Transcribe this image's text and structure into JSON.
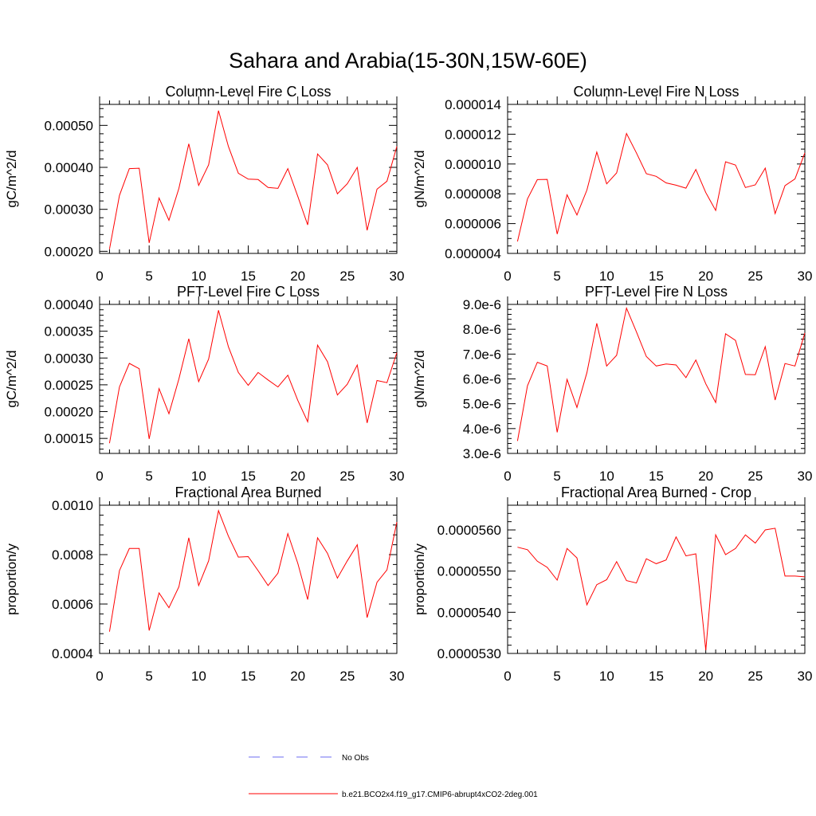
{
  "figure_title": "Sahara and Arabia(15-30N,15W-60E)",
  "colors": {
    "model": "#ff0000",
    "obs": "#6d6df0",
    "axes": "#000000"
  },
  "legend": [
    {
      "label": "No Obs",
      "style": "dashed",
      "color": "#6d6df0"
    },
    {
      "label": "b.e21.BCO2x4.f19_g17.CMIP6-abrupt4xCO2-2deg.001",
      "style": "solid",
      "color": "#ff0000"
    }
  ],
  "chart_data": [
    {
      "type": "line",
      "title": "Column-Level Fire C Loss",
      "ylabel": "gC/m^2/d",
      "xlim": [
        0,
        30
      ],
      "ylim": [
        0.000195,
        0.00055
      ],
      "xticks": [
        0,
        5,
        10,
        15,
        20,
        25,
        30
      ],
      "xtick_labels": [
        "0",
        "5",
        "10",
        "15",
        "20",
        "25",
        "30"
      ],
      "yticks": [
        0.0002,
        0.0003,
        0.0004,
        0.0005
      ],
      "ytick_labels": [
        "0.00020",
        "0.00030",
        "0.00040",
        "0.00050"
      ],
      "yminor": 2e-05,
      "x": [
        1,
        2,
        3,
        4,
        5,
        6,
        7,
        8,
        9,
        10,
        11,
        12,
        13,
        14,
        15,
        16,
        17,
        18,
        19,
        20,
        21,
        22,
        23,
        24,
        25,
        26,
        27,
        28,
        29,
        30
      ],
      "series": [
        {
          "name": "b.e21.BCO2x4.f19_g17.CMIP6-abrupt4xCO2-2deg.001",
          "values": [
            0.000205,
            0.000333,
            0.000397,
            0.000398,
            0.00022,
            0.000327,
            0.000274,
            0.00035,
            0.000456,
            0.000357,
            0.000406,
            0.000535,
            0.00045,
            0.000386,
            0.000372,
            0.000371,
            0.000352,
            0.00035,
            0.000397,
            0.000331,
            0.000263,
            0.000432,
            0.000406,
            0.000337,
            0.000361,
            0.0004,
            0.00025,
            0.000348,
            0.000367,
            0.00045
          ]
        }
      ]
    },
    {
      "type": "line",
      "title": "Column-Level Fire N Loss",
      "ylabel": "gN/m^2/d",
      "xlim": [
        0,
        30
      ],
      "ylim": [
        4e-06,
        1.4e-05
      ],
      "xticks": [
        0,
        5,
        10,
        15,
        20,
        25,
        30
      ],
      "xtick_labels": [
        "0",
        "5",
        "10",
        "15",
        "20",
        "25",
        "30"
      ],
      "yticks": [
        4e-06,
        6e-06,
        8e-06,
        1e-05,
        1.2e-05,
        1.4e-05
      ],
      "ytick_labels": [
        "0.000004",
        "0.000006",
        "0.000008",
        "0.000010",
        "0.000012",
        "0.000014"
      ],
      "yminor": 5e-07,
      "x": [
        1,
        2,
        3,
        4,
        5,
        6,
        7,
        8,
        9,
        10,
        11,
        12,
        13,
        14,
        15,
        16,
        17,
        18,
        19,
        20,
        21,
        22,
        23,
        24,
        25,
        26,
        27,
        28,
        29,
        30
      ],
      "series": [
        {
          "name": "b.e21.BCO2x4.f19_g17.CMIP6-abrupt4xCO2-2deg.001",
          "values": [
            4.8e-06,
            7.65e-06,
            8.95e-06,
            8.97e-06,
            5.3e-06,
            7.93e-06,
            6.58e-06,
            8.25e-06,
            1.08e-05,
            8.67e-06,
            9.4e-06,
            1.205e-05,
            1.075e-05,
            9.35e-06,
            9.17e-06,
            8.73e-06,
            8.58e-06,
            8.38e-06,
            9.63e-06,
            8.08e-06,
            6.88e-06,
            1.015e-05,
            9.93e-06,
            8.42e-06,
            8.6e-06,
            9.72e-06,
            6.67e-06,
            8.55e-06,
            9e-06,
            1.075e-05
          ]
        }
      ]
    },
    {
      "type": "line",
      "title": "PFT-Level Fire C Loss",
      "ylabel": "gC/m^2/d",
      "xlim": [
        0,
        30
      ],
      "ylim": [
        0.000122,
        0.0004
      ],
      "xticks": [
        0,
        5,
        10,
        15,
        20,
        25,
        30
      ],
      "xtick_labels": [
        "0",
        "5",
        "10",
        "15",
        "20",
        "25",
        "30"
      ],
      "yticks": [
        0.00015,
        0.0002,
        0.00025,
        0.0003,
        0.00035,
        0.0004
      ],
      "ytick_labels": [
        "0.00015",
        "0.00020",
        "0.00025",
        "0.00030",
        "0.00035",
        "0.00040"
      ],
      "yminor": 1e-05,
      "x": [
        1,
        2,
        3,
        4,
        5,
        6,
        7,
        8,
        9,
        10,
        11,
        12,
        13,
        14,
        15,
        16,
        17,
        18,
        19,
        20,
        21,
        22,
        23,
        24,
        25,
        26,
        27,
        28,
        29,
        30
      ],
      "series": [
        {
          "name": "b.e21.BCO2x4.f19_g17.CMIP6-abrupt4xCO2-2deg.001",
          "values": [
            0.000141,
            0.000246,
            0.00029,
            0.00028,
            0.000149,
            0.000243,
            0.000196,
            0.000261,
            0.000336,
            0.000256,
            0.000298,
            0.000389,
            0.000321,
            0.000273,
            0.000249,
            0.000273,
            0.000259,
            0.000246,
            0.000268,
            0.000221,
            0.000181,
            0.000324,
            0.000293,
            0.000231,
            0.000251,
            0.000287,
            0.000179,
            0.000258,
            0.000254,
            0.00031
          ]
        }
      ]
    },
    {
      "type": "line",
      "title": "PFT-Level Fire N Loss",
      "ylabel": "gN/m^2/d",
      "xlim": [
        0,
        30
      ],
      "ylim": [
        3e-06,
        9e-06
      ],
      "xticks": [
        0,
        5,
        10,
        15,
        20,
        25,
        30
      ],
      "xtick_labels": [
        "0",
        "5",
        "10",
        "15",
        "20",
        "25",
        "30"
      ],
      "yticks": [
        3e-06,
        4e-06,
        5e-06,
        6e-06,
        7e-06,
        8e-06,
        9e-06
      ],
      "ytick_labels": [
        "3.0e-6",
        "4.0e-6",
        "5.0e-6",
        "6.0e-6",
        "7.0e-6",
        "8.0e-6",
        "9.0e-6"
      ],
      "yminor": 2e-07,
      "x": [
        1,
        2,
        3,
        4,
        5,
        6,
        7,
        8,
        9,
        10,
        11,
        12,
        13,
        14,
        15,
        16,
        17,
        18,
        19,
        20,
        21,
        22,
        23,
        24,
        25,
        26,
        27,
        28,
        29,
        30
      ],
      "series": [
        {
          "name": "b.e21.BCO2x4.f19_g17.CMIP6-abrupt4xCO2-2deg.001",
          "values": [
            3.5e-06,
            5.72e-06,
            6.67e-06,
            6.52e-06,
            3.85e-06,
            5.98e-06,
            4.85e-06,
            6.25e-06,
            8.24e-06,
            6.52e-06,
            6.95e-06,
            8.85e-06,
            7.9e-06,
            6.9e-06,
            6.52e-06,
            6.6e-06,
            6.56e-06,
            6.05e-06,
            6.76e-06,
            5.8e-06,
            5.05e-06,
            7.82e-06,
            7.55e-06,
            6.18e-06,
            6.17e-06,
            7.3e-06,
            5.15e-06,
            6.62e-06,
            6.52e-06,
            7.85e-06
          ]
        }
      ]
    },
    {
      "type": "line",
      "title": "Fractional Area Burned",
      "ylabel": "proportion/y",
      "xlim": [
        0,
        30
      ],
      "ylim": [
        0.0004,
        0.001
      ],
      "xticks": [
        0,
        5,
        10,
        15,
        20,
        25,
        30
      ],
      "xtick_labels": [
        "0",
        "5",
        "10",
        "15",
        "20",
        "25",
        "30"
      ],
      "yticks": [
        0.0004,
        0.0006,
        0.0008,
        0.001
      ],
      "ytick_labels": [
        "0.0004",
        "0.0006",
        "0.0008",
        "0.0010"
      ],
      "yminor": 4e-05,
      "x": [
        1,
        2,
        3,
        4,
        5,
        6,
        7,
        8,
        9,
        10,
        11,
        12,
        13,
        14,
        15,
        16,
        17,
        18,
        19,
        20,
        21,
        22,
        23,
        24,
        25,
        26,
        27,
        28,
        29,
        30
      ],
      "series": [
        {
          "name": "b.e21.BCO2x4.f19_g17.CMIP6-abrupt4xCO2-2deg.001",
          "values": [
            0.000488,
            0.000735,
            0.000825,
            0.000825,
            0.000493,
            0.000645,
            0.000585,
            0.00067,
            0.000868,
            0.000675,
            0.000775,
            0.000978,
            0.000875,
            0.00079,
            0.000792,
            0.000735,
            0.000675,
            0.000725,
            0.000885,
            0.000765,
            0.000618,
            0.000868,
            0.000805,
            0.000705,
            0.000775,
            0.00084,
            0.000545,
            0.000688,
            0.000738,
            0.000932
          ]
        }
      ]
    },
    {
      "type": "line",
      "title": "Fractional Area Burned - Crop",
      "ylabel": "proportion/y",
      "xlim": [
        0,
        30
      ],
      "ylim": [
        5.3e-05,
        5.66e-05
      ],
      "xticks": [
        0,
        5,
        10,
        15,
        20,
        25,
        30
      ],
      "xtick_labels": [
        "0",
        "5",
        "10",
        "15",
        "20",
        "25",
        "30"
      ],
      "yticks": [
        5.3e-05,
        5.4e-05,
        5.5e-05,
        5.6e-05
      ],
      "ytick_labels": [
        "0.0000530",
        "0.0000540",
        "0.0000550",
        "0.0000560"
      ],
      "yminor": 2e-07,
      "x": [
        1,
        2,
        3,
        4,
        5,
        6,
        7,
        8,
        9,
        10,
        11,
        12,
        13,
        14,
        15,
        16,
        17,
        18,
        19,
        20,
        21,
        22,
        23,
        24,
        25,
        26,
        27,
        28,
        29,
        30
      ],
      "series": [
        {
          "name": "b.e21.BCO2x4.f19_g17.CMIP6-abrupt4xCO2-2deg.001",
          "values": [
            5.558e-05,
            5.552e-05,
            5.524e-05,
            5.509e-05,
            5.478e-05,
            5.555e-05,
            5.532e-05,
            5.418e-05,
            5.467e-05,
            5.479e-05,
            5.523e-05,
            5.477e-05,
            5.471e-05,
            5.53e-05,
            5.518e-05,
            5.527e-05,
            5.583e-05,
            5.537e-05,
            5.542e-05,
            5.308e-05,
            5.588e-05,
            5.54e-05,
            5.555e-05,
            5.588e-05,
            5.568e-05,
            5.6e-05,
            5.604e-05,
            5.488e-05,
            5.488e-05,
            5.486e-05
          ]
        }
      ]
    }
  ]
}
